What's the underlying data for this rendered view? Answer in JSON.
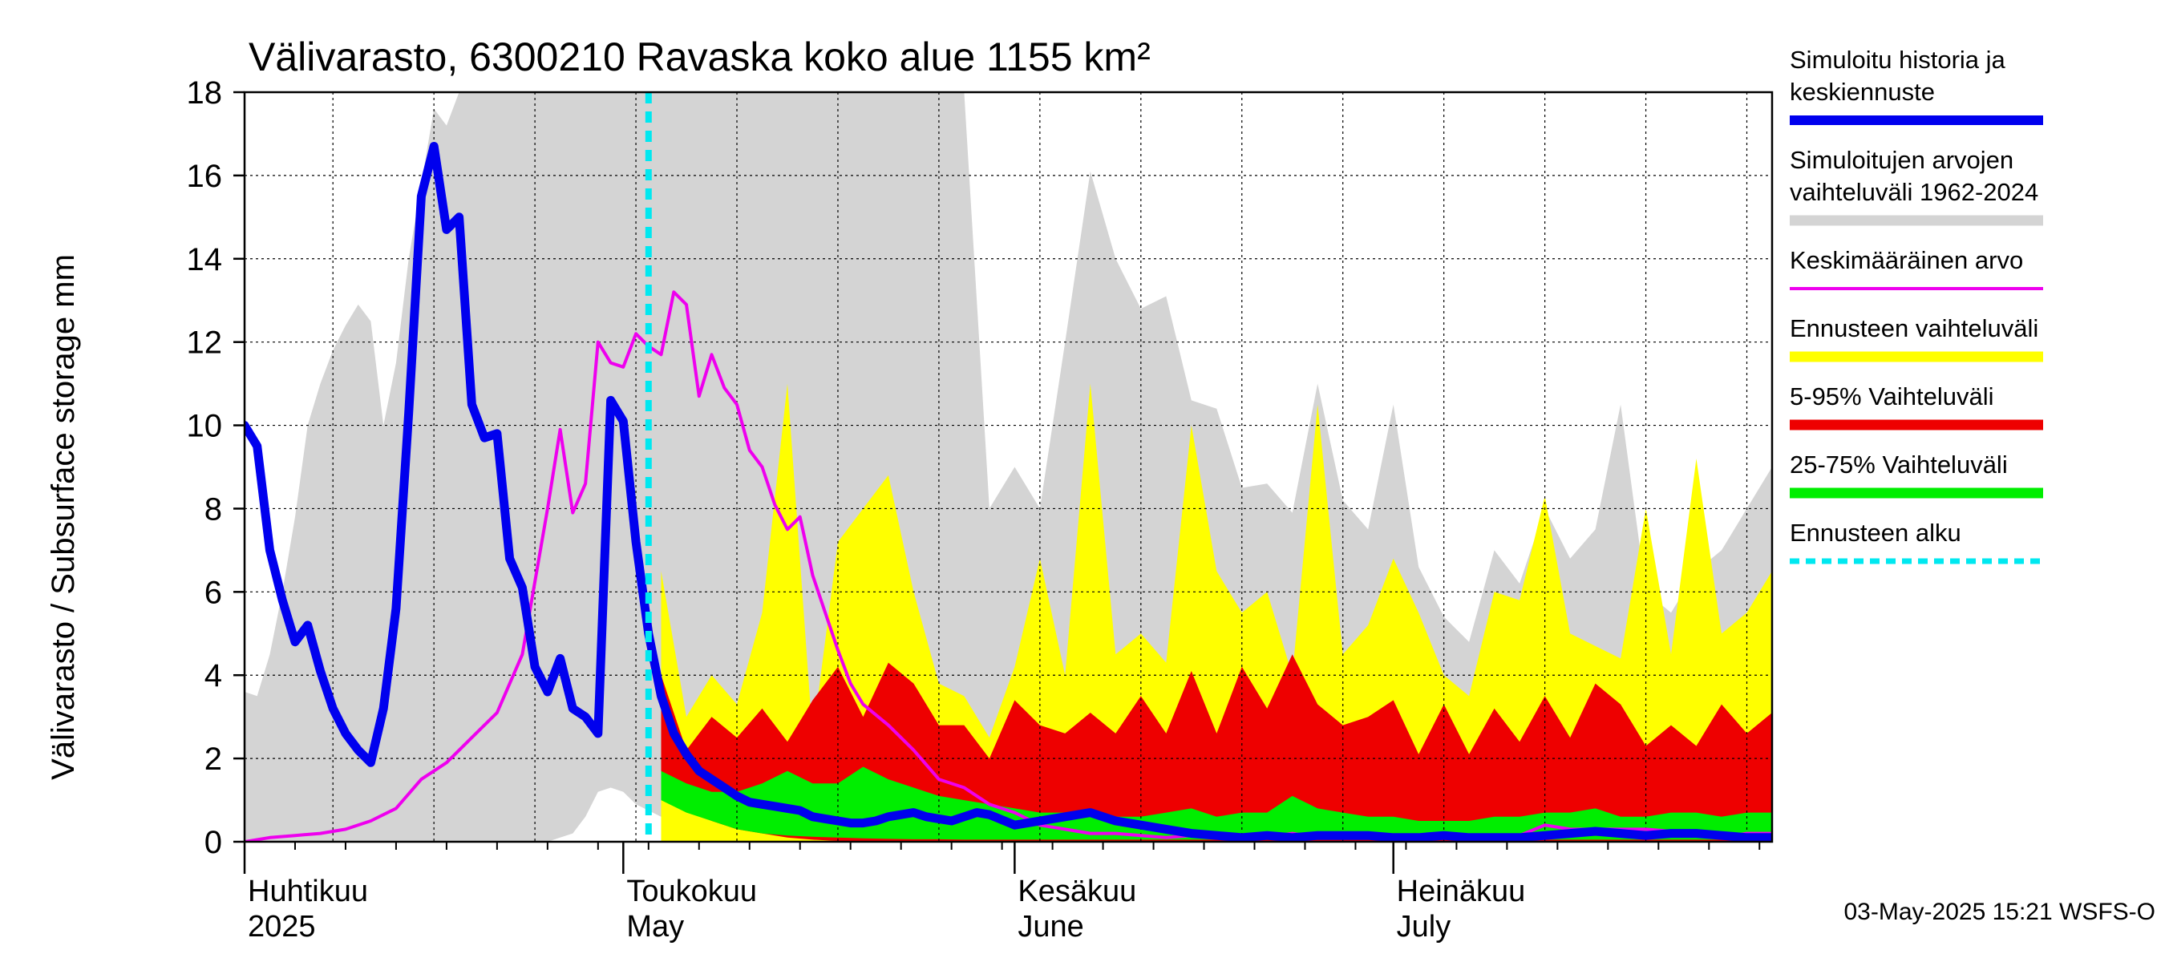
{
  "chart_data": {
    "type": "area",
    "title": "Välivarasto, 6300210 Ravaska koko alue 1155 km²",
    "ylabel": "Välivarasto / Subsurface storage  mm",
    "ylim": [
      0,
      18
    ],
    "yticks": [
      0,
      2,
      4,
      6,
      8,
      10,
      12,
      14,
      16,
      18
    ],
    "x_range": [
      "2025-04-01",
      "2025-07-31"
    ],
    "grid": true,
    "forecast_start": "2025-05-03",
    "months": [
      {
        "fi": "Huhtikuu",
        "en": "2025",
        "date": "2025-04-01"
      },
      {
        "fi": "Toukokuu",
        "en": "May",
        "date": "2025-05-01"
      },
      {
        "fi": "Kesäkuu",
        "en": "June",
        "date": "2025-06-01"
      },
      {
        "fi": "Heinäkuu",
        "en": "July",
        "date": "2025-07-01"
      }
    ],
    "footer": "03-May-2025 15:21 WSFS-O",
    "legend": [
      {
        "label": "Simuloitu historia ja keskiennuste",
        "color": "#0000ee"
      },
      {
        "label": "Simuloitujen arvojen vaihteluväli 1962-2024",
        "color": "#d4d4d4"
      },
      {
        "label": "Keskimääräinen arvo",
        "color": "#ee00ee"
      },
      {
        "label": "Ennusteen vaihteluväli",
        "color": "#ffff00"
      },
      {
        "label": "5-95% Vaihteluväli",
        "color": "#ee0000"
      },
      {
        "label": "25-75% Vaihteluväli",
        "color": "#00ee00"
      },
      {
        "label": "Ennusteen alku",
        "color": "#00e8f0"
      }
    ],
    "hist_range": {
      "x": [
        1,
        2,
        3,
        4,
        5,
        6,
        7,
        8,
        9,
        10,
        11,
        12,
        13,
        14,
        15,
        16,
        17,
        18,
        19,
        20,
        21,
        22,
        23,
        24,
        25,
        26,
        27,
        28,
        29,
        30,
        31,
        32,
        34,
        36,
        38,
        40,
        42,
        44,
        46,
        48,
        50,
        52,
        54,
        56,
        58,
        60,
        62,
        64,
        66,
        68,
        70,
        72,
        74,
        76,
        78,
        80,
        82,
        84,
        86,
        88,
        90,
        92,
        94,
        96,
        98,
        100,
        102,
        104,
        106,
        108,
        110,
        112,
        114,
        116,
        118,
        120,
        122
      ],
      "upper": [
        3.6,
        3.5,
        4.5,
        6,
        7.8,
        10,
        11,
        11.8,
        12.4,
        12.9,
        12.5,
        10,
        11.5,
        14,
        15.8,
        17.6,
        17.2,
        18,
        18,
        18,
        18,
        18,
        18,
        18,
        18,
        18,
        18,
        18,
        18,
        18,
        18,
        18,
        18,
        18,
        18,
        18,
        18,
        18,
        18,
        18,
        18,
        18,
        18,
        18,
        18,
        8,
        9,
        8,
        12,
        16.1,
        14,
        12.8,
        13.1,
        10.6,
        10.4,
        8.5,
        8.6,
        7.9,
        11,
        8.2,
        7.5,
        10.5,
        6.6,
        5.4,
        4.8,
        7,
        6.2,
        8,
        6.8,
        7.5,
        10.5,
        6,
        5.5,
        6.5,
        7,
        8,
        9
      ],
      "lower": [
        0,
        0,
        0,
        0,
        0,
        0,
        0,
        0,
        0,
        0,
        0,
        0,
        0,
        0,
        0,
        0,
        0,
        0,
        0,
        0,
        0,
        0,
        0,
        0,
        0,
        0.1,
        0.2,
        0.6,
        1.2,
        1.3,
        1.2,
        0.9,
        0.6,
        0.4,
        0.3,
        0.2,
        0.15,
        0.1,
        0.08,
        0.05,
        0.05,
        0.04,
        0.03,
        0.03,
        0.02,
        0.02,
        0.02,
        0.02,
        0.02,
        0.02,
        0.02,
        0.02,
        0.02,
        0.02,
        0.02,
        0.02,
        0.02,
        0.02,
        0.02,
        0.02,
        0.02,
        0.02,
        0.02,
        0.02,
        0.02,
        0.02,
        0.02,
        0.02,
        0.02,
        0.02,
        0.02,
        0.02,
        0.02,
        0.02,
        0.02,
        0.02,
        0.02
      ]
    },
    "forecast_range": {
      "x": [
        34,
        36,
        38,
        40,
        42,
        44,
        46,
        48,
        50,
        52,
        54,
        56,
        58,
        60,
        62,
        64,
        66,
        68,
        70,
        72,
        74,
        76,
        78,
        80,
        82,
        84,
        86,
        88,
        90,
        92,
        94,
        96,
        98,
        100,
        102,
        104,
        106,
        108,
        110,
        112,
        114,
        116,
        118,
        120,
        122
      ],
      "upper": [
        6.5,
        3,
        4,
        3.3,
        5.5,
        11,
        2.5,
        7.2,
        8,
        8.8,
        6,
        3.8,
        3.5,
        2.5,
        4.2,
        6.8,
        4,
        11,
        4.5,
        5,
        4.3,
        10,
        6.5,
        5.5,
        6,
        4,
        10.5,
        4.5,
        5.2,
        6.8,
        5.5,
        4,
        3.5,
        6,
        5.8,
        8.3,
        5,
        4.7,
        4.4,
        8,
        4.5,
        9.2,
        5,
        5.5,
        6.5
      ],
      "lower": [
        0,
        0,
        0,
        0,
        0,
        0,
        0,
        0,
        0,
        0,
        0,
        0,
        0,
        0,
        0,
        0,
        0,
        0,
        0,
        0,
        0,
        0,
        0,
        0,
        0,
        0,
        0,
        0,
        0,
        0,
        0,
        0,
        0,
        0,
        0,
        0,
        0,
        0,
        0,
        0,
        0,
        0,
        0,
        0,
        0
      ]
    },
    "p5_95": {
      "x": [
        34,
        36,
        38,
        40,
        42,
        44,
        46,
        48,
        50,
        52,
        54,
        56,
        58,
        60,
        62,
        64,
        66,
        68,
        70,
        72,
        74,
        76,
        78,
        80,
        82,
        84,
        86,
        88,
        90,
        92,
        94,
        96,
        98,
        100,
        102,
        104,
        106,
        108,
        110,
        112,
        114,
        116,
        118,
        120,
        122
      ],
      "upper": [
        4,
        2.2,
        3,
        2.5,
        3.2,
        2.4,
        3.4,
        4.2,
        3,
        4.3,
        3.8,
        2.8,
        2.8,
        2,
        3.4,
        2.8,
        2.6,
        3.1,
        2.6,
        3.5,
        2.6,
        4.1,
        2.6,
        4.2,
        3.2,
        4.5,
        3.3,
        2.8,
        3,
        3.4,
        2.1,
        3.3,
        2.1,
        3.2,
        2.4,
        3.5,
        2.5,
        3.8,
        3.3,
        2.3,
        2.8,
        2.3,
        3.3,
        2.6,
        3.1
      ],
      "lower": [
        1.2,
        0.8,
        0.5,
        0.3,
        0.2,
        0.1,
        0.05,
        0.02,
        0.02,
        0.02,
        0.02,
        0.02,
        0.02,
        0.02,
        0.02,
        0.02,
        0.02,
        0.02,
        0.02,
        0.02,
        0.02,
        0.02,
        0.02,
        0.02,
        0.02,
        0.02,
        0.02,
        0.02,
        0.02,
        0.02,
        0.02,
        0.02,
        0.02,
        0.02,
        0.02,
        0.02,
        0.02,
        0.02,
        0.02,
        0.02,
        0.02,
        0.02,
        0.02,
        0.02,
        0.02
      ]
    },
    "p25_75": {
      "x": [
        34,
        36,
        38,
        40,
        42,
        44,
        46,
        48,
        50,
        52,
        54,
        56,
        58,
        60,
        62,
        64,
        66,
        68,
        70,
        72,
        74,
        76,
        78,
        80,
        82,
        84,
        86,
        88,
        90,
        92,
        94,
        96,
        98,
        100,
        102,
        104,
        106,
        108,
        110,
        112,
        114,
        116,
        118,
        120,
        122
      ],
      "upper": [
        1.7,
        1.4,
        1.2,
        1.2,
        1.4,
        1.7,
        1.4,
        1.4,
        1.8,
        1.5,
        1.3,
        1.1,
        1,
        0.9,
        0.8,
        0.7,
        0.7,
        0.8,
        0.6,
        0.6,
        0.7,
        0.8,
        0.6,
        0.7,
        0.7,
        1.1,
        0.8,
        0.7,
        0.6,
        0.6,
        0.5,
        0.5,
        0.5,
        0.6,
        0.6,
        0.7,
        0.7,
        0.8,
        0.6,
        0.6,
        0.7,
        0.7,
        0.6,
        0.7,
        0.7
      ],
      "lower": [
        1,
        0.7,
        0.5,
        0.3,
        0.2,
        0.15,
        0.12,
        0.1,
        0.08,
        0.07,
        0.06,
        0.06,
        0.05,
        0.05,
        0.05,
        0.05,
        0.05,
        0.05,
        0.05,
        0.05,
        0.05,
        0.05,
        0.05,
        0.05,
        0.05,
        0.05,
        0.05,
        0.05,
        0.05,
        0.05,
        0.05,
        0.05,
        0.05,
        0.05,
        0.05,
        0.05,
        0.05,
        0.05,
        0.05,
        0.05,
        0.05,
        0.05,
        0.05,
        0.05,
        0.05
      ]
    },
    "mean": {
      "x": [
        1,
        3,
        5,
        7,
        9,
        11,
        13,
        15,
        17,
        19,
        21,
        23,
        25,
        26,
        27,
        28,
        29,
        30,
        31,
        32,
        33,
        34,
        35,
        36,
        37,
        38,
        39,
        40,
        41,
        42,
        43,
        44,
        45,
        46,
        47,
        48,
        49,
        50,
        52,
        54,
        56,
        58,
        60,
        62,
        64,
        66,
        68,
        70,
        72,
        74,
        76,
        78,
        80,
        82,
        84,
        86,
        88,
        90,
        92,
        94,
        96,
        98,
        100,
        102,
        104,
        106,
        108,
        110,
        112,
        114,
        116,
        118,
        120,
        122
      ],
      "y": [
        0,
        0.1,
        0.15,
        0.2,
        0.3,
        0.5,
        0.8,
        1.5,
        1.9,
        2.5,
        3.1,
        4.5,
        8,
        9.9,
        7.9,
        8.6,
        12,
        11.5,
        11.4,
        12.2,
        11.9,
        11.7,
        13.2,
        12.9,
        10.7,
        11.7,
        10.9,
        10.5,
        9.4,
        9,
        8.1,
        7.5,
        7.8,
        6.4,
        5.5,
        4.6,
        3.8,
        3.3,
        2.8,
        2.2,
        1.5,
        1.3,
        0.9,
        0.7,
        0.4,
        0.3,
        0.2,
        0.2,
        0.15,
        0.1,
        0.15,
        0.1,
        0.1,
        0.1,
        0.2,
        0.1,
        0.15,
        0.2,
        0.1,
        0.1,
        0.15,
        0.1,
        0.1,
        0.15,
        0.4,
        0.3,
        0.3,
        0.3,
        0.3,
        0.25,
        0.15,
        0.1,
        0.2,
        0.2
      ]
    },
    "sim_history": {
      "x": [
        1,
        2,
        3,
        4,
        5,
        6,
        7,
        8,
        9,
        10,
        11,
        12,
        13,
        14,
        15,
        16,
        17,
        18,
        19,
        20,
        21,
        22,
        23,
        24,
        25,
        26,
        27,
        28,
        29,
        30,
        31,
        32,
        33,
        34,
        35,
        36,
        37,
        38,
        39,
        40,
        41,
        42,
        43,
        44,
        45,
        46,
        47,
        48,
        49,
        50,
        51,
        52,
        53,
        54,
        55,
        56,
        57,
        58,
        59,
        60,
        62,
        64,
        66,
        68,
        70,
        72,
        74,
        76,
        78,
        80,
        82,
        84,
        86,
        88,
        90,
        92,
        94,
        96,
        98,
        100,
        102,
        104,
        106,
        108,
        110,
        112,
        114,
        116,
        118,
        120,
        122
      ],
      "y": [
        10,
        9.5,
        7,
        5.8,
        4.8,
        5.2,
        4.1,
        3.2,
        2.6,
        2.2,
        1.9,
        3.2,
        5.6,
        10.3,
        15.5,
        16.7,
        14.7,
        15,
        10.5,
        9.7,
        9.8,
        6.8,
        6.1,
        4.2,
        3.6,
        4.4,
        3.2,
        3,
        2.6,
        10.6,
        10.1,
        7.2,
        5,
        3.5,
        2.6,
        2.1,
        1.7,
        1.5,
        1.3,
        1.1,
        0.95,
        0.9,
        0.85,
        0.8,
        0.75,
        0.6,
        0.55,
        0.5,
        0.45,
        0.45,
        0.5,
        0.6,
        0.65,
        0.7,
        0.6,
        0.55,
        0.5,
        0.6,
        0.7,
        0.65,
        0.4,
        0.5,
        0.6,
        0.7,
        0.5,
        0.4,
        0.3,
        0.2,
        0.15,
        0.1,
        0.15,
        0.1,
        0.15,
        0.15,
        0.15,
        0.1,
        0.1,
        0.15,
        0.1,
        0.1,
        0.1,
        0.15,
        0.2,
        0.25,
        0.2,
        0.15,
        0.2,
        0.2,
        0.15,
        0.1,
        0.1
      ]
    }
  }
}
